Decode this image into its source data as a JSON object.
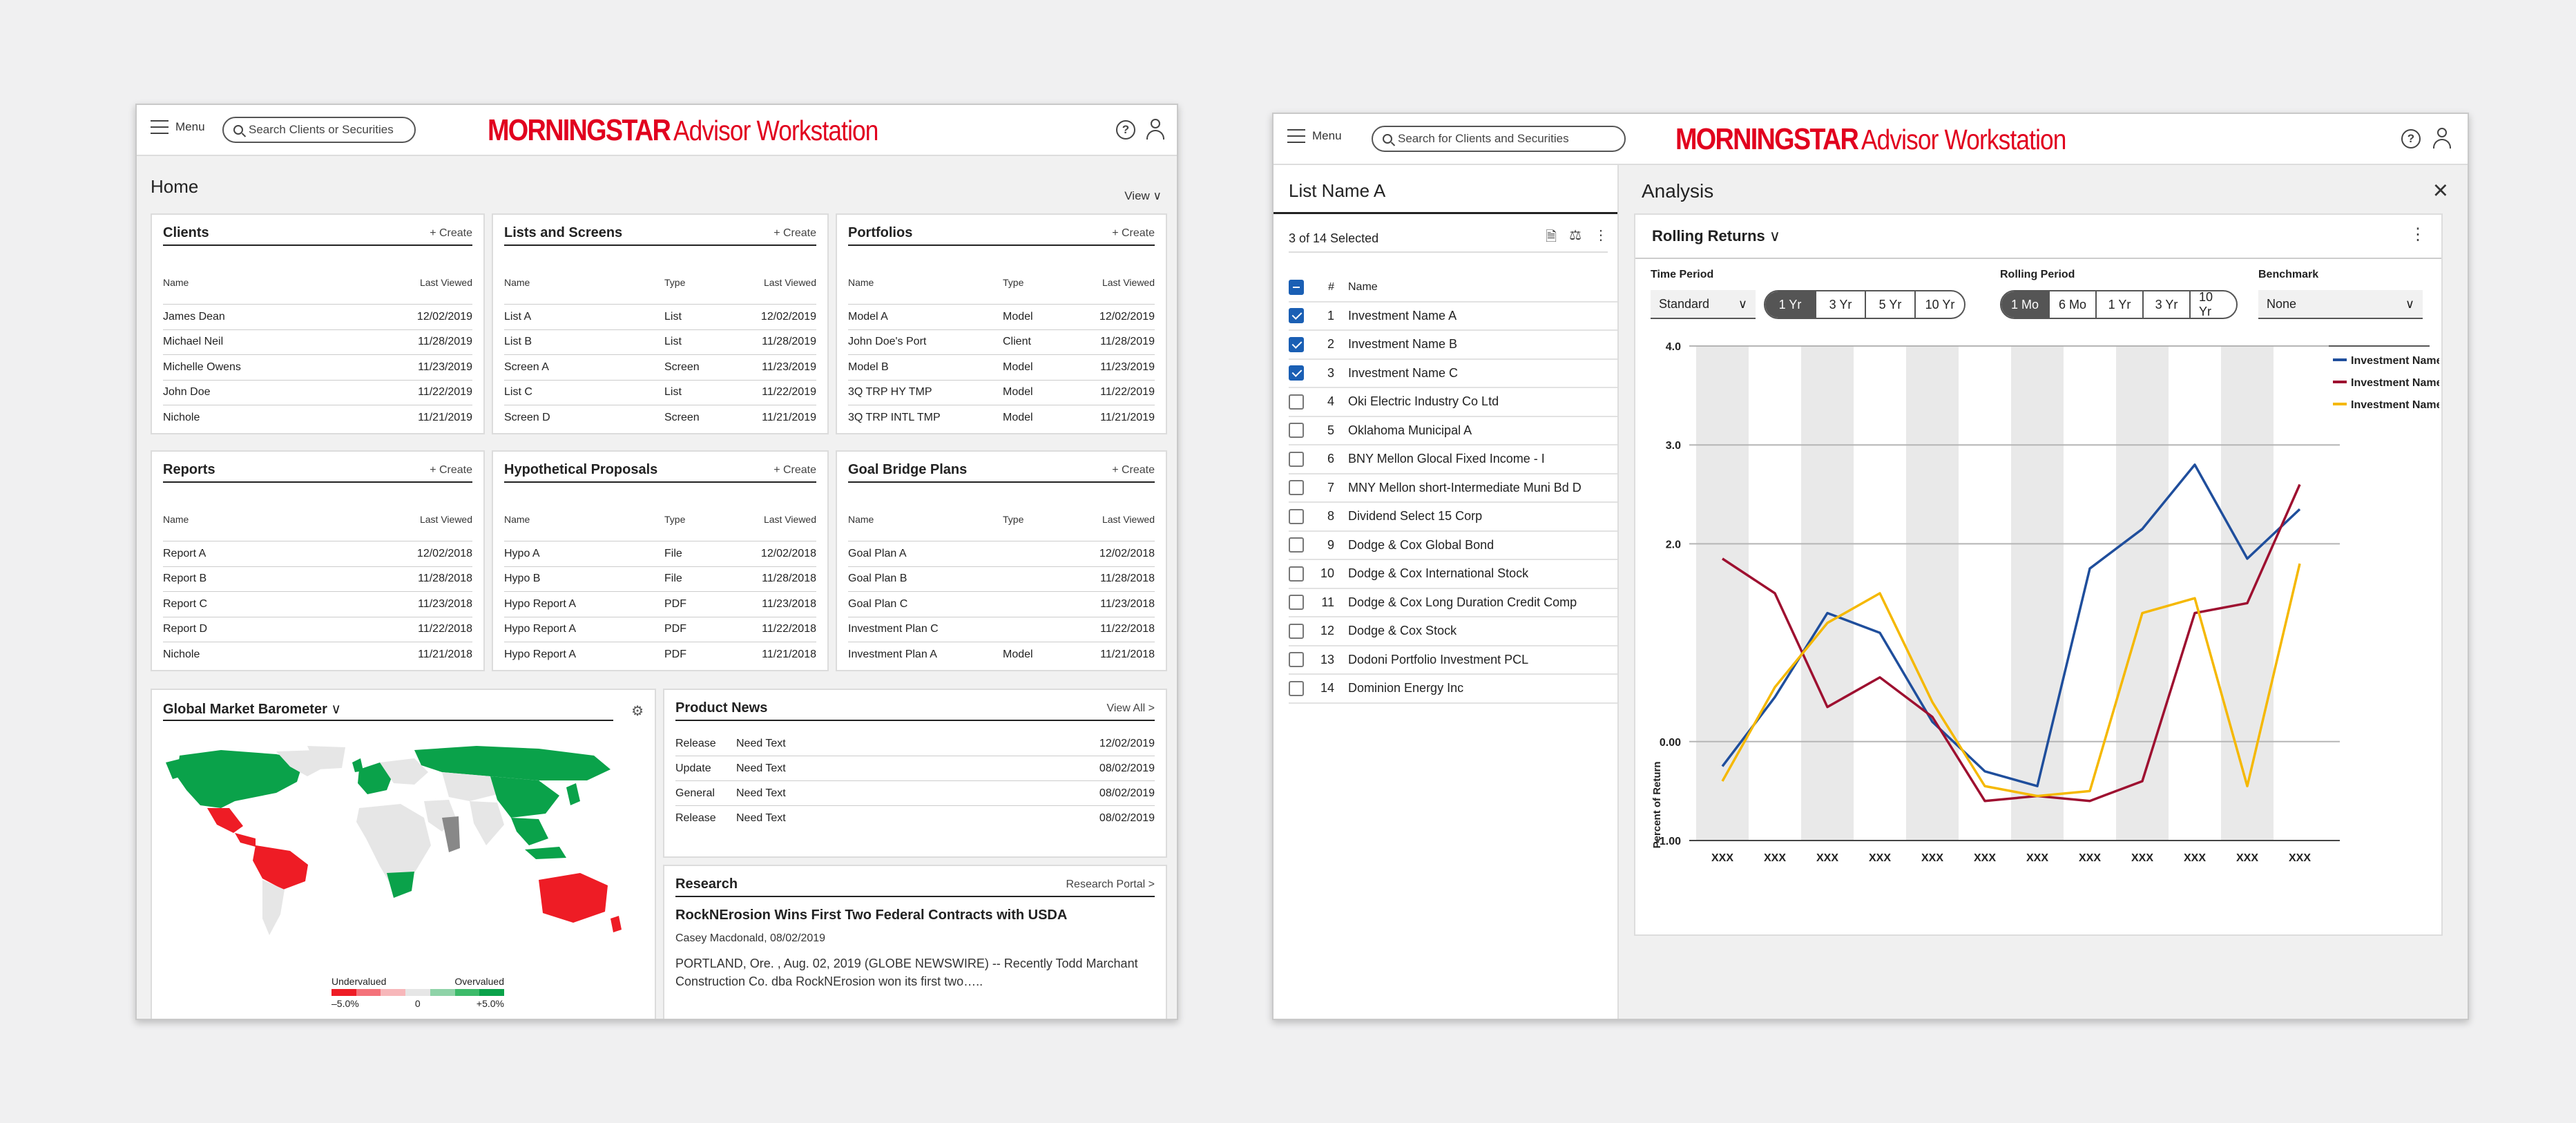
{
  "brand": {
    "logo_word": "MORNINGSTAR",
    "product": "Advisor Workstation"
  },
  "home": {
    "menu_label": "Menu",
    "search_placeholder": "Search Clients or Securities",
    "page_title": "Home",
    "view_label": "View",
    "clients": {
      "title": "Clients",
      "action": "+ Create",
      "headers": [
        "Name",
        "Last Viewed"
      ],
      "rows": [
        {
          "name": "James Dean",
          "date": "12/02/2019"
        },
        {
          "name": "Michael Neil",
          "date": "11/28/2019"
        },
        {
          "name": "Michelle Owens",
          "date": "11/23/2019"
        },
        {
          "name": "John Doe",
          "date": "11/22/2019"
        },
        {
          "name": "Nichole",
          "date": "11/21/2019"
        }
      ]
    },
    "lists": {
      "title": "Lists and Screens",
      "action": "+ Create",
      "headers": [
        "Name",
        "Type",
        "Last Viewed"
      ],
      "rows": [
        {
          "name": "List A",
          "type": "List",
          "date": "12/02/2019"
        },
        {
          "name": "List B",
          "type": "List",
          "date": "11/28/2019"
        },
        {
          "name": "Screen A",
          "type": "Screen",
          "date": "11/23/2019"
        },
        {
          "name": "List C",
          "type": "List",
          "date": "11/22/2019"
        },
        {
          "name": "Screen D",
          "type": "Screen",
          "date": "11/21/2019"
        }
      ]
    },
    "portfolios": {
      "title": "Portfolios",
      "action": "+ Create",
      "headers": [
        "Name",
        "Type",
        "Last Viewed"
      ],
      "rows": [
        {
          "name": "Model A",
          "type": "Model",
          "date": "12/02/2019"
        },
        {
          "name": "John Doe's Port",
          "type": "Client",
          "date": "11/28/2019"
        },
        {
          "name": "Model B",
          "type": "Model",
          "date": "11/23/2019"
        },
        {
          "name": "3Q TRP HY TMP",
          "type": "Model",
          "date": "11/22/2019"
        },
        {
          "name": "3Q TRP INTL TMP",
          "type": "Model",
          "date": "11/21/2019"
        }
      ]
    },
    "reports": {
      "title": "Reports",
      "action": "+ Create",
      "headers": [
        "Name",
        "Last Viewed"
      ],
      "rows": [
        {
          "name": "Report A",
          "date": "12/02/2018"
        },
        {
          "name": "Report B",
          "date": "11/28/2018"
        },
        {
          "name": "Report C",
          "date": "11/23/2018"
        },
        {
          "name": "Report D",
          "date": "11/22/2018"
        },
        {
          "name": "Nichole",
          "date": "11/21/2018"
        }
      ]
    },
    "proposals": {
      "title": "Hypothetical Proposals",
      "action": "+ Create",
      "headers": [
        "Name",
        "Type",
        "Last Viewed"
      ],
      "rows": [
        {
          "name": "Hypo A",
          "type": "File",
          "date": "12/02/2018"
        },
        {
          "name": "Hypo B",
          "type": "File",
          "date": "11/28/2018"
        },
        {
          "name": "Hypo Report A",
          "type": "PDF",
          "date": "11/23/2018"
        },
        {
          "name": "Hypo Report A",
          "type": "PDF",
          "date": "11/22/2018"
        },
        {
          "name": "Hypo Report A",
          "type": "PDF",
          "date": "11/21/2018"
        }
      ]
    },
    "goals": {
      "title": "Goal Bridge Plans",
      "action": "+ Create",
      "headers": [
        "Name",
        "Type",
        "Last Viewed"
      ],
      "rows": [
        {
          "name": "Goal Plan A",
          "type": "",
          "date": "12/02/2018"
        },
        {
          "name": "Goal Plan B",
          "type": "",
          "date": "11/28/2018"
        },
        {
          "name": "Goal Plan C",
          "type": "",
          "date": "11/23/2018"
        },
        {
          "name": "Investment Plan C",
          "type": "",
          "date": "11/22/2018"
        },
        {
          "name": "Investment Plan A",
          "type": "Model",
          "date": "11/21/2018"
        }
      ]
    },
    "barometer": {
      "title": "Global Market Barometer",
      "undervalued": "Undervalued",
      "overvalued": "Overvalued",
      "scale_ticks": [
        "–5.0%",
        "0",
        "+5.0%"
      ],
      "colors": {
        "over": "#0aa24a",
        "under": "#ee1c25",
        "neutral": "#e6e6e6"
      }
    },
    "news": {
      "title": "Product News",
      "action": "View All  >",
      "rows": [
        {
          "type": "Release",
          "text": "Need Text",
          "date": "12/02/2019"
        },
        {
          "type": "Update",
          "text": "Need Text",
          "date": "08/02/2019"
        },
        {
          "type": "General",
          "text": "Need Text",
          "date": "08/02/2019"
        },
        {
          "type": "Release",
          "text": "Need Text",
          "date": "08/02/2019"
        }
      ]
    },
    "research": {
      "title": "Research",
      "action": "Research Portal >",
      "headline": "RockNErosion Wins First Two Federal Contracts with USDA",
      "byline": "Casey Macdonald, 08/02/2019",
      "body": "PORTLAND, Ore. , Aug. 02, 2019 (GLOBE NEWSWIRE) -- Recently Todd Marchant Construction Co. dba RockNErosion won its first two….."
    }
  },
  "analysis": {
    "menu_label": "Menu",
    "search_placeholder": "Search for Clients and Securities",
    "list_title": "List Name A",
    "selected_text": "3 of 14 Selected",
    "col_num": "#",
    "col_name": "Name",
    "items": [
      {
        "num": "1",
        "name": "Investment Name A",
        "checked": true
      },
      {
        "num": "2",
        "name": "Investment Name B",
        "checked": true
      },
      {
        "num": "3",
        "name": "Investment Name C",
        "checked": true
      },
      {
        "num": "4",
        "name": "Oki Electric Industry Co Ltd",
        "checked": false
      },
      {
        "num": "5",
        "name": "Oklahoma Municipal A",
        "checked": false
      },
      {
        "num": "6",
        "name": "BNY Mellon Glocal Fixed Income - I",
        "checked": false
      },
      {
        "num": "7",
        "name": "MNY Mellon short-Intermediate Muni Bd D",
        "checked": false
      },
      {
        "num": "8",
        "name": "Dividend Select 15 Corp",
        "checked": false
      },
      {
        "num": "9",
        "name": "Dodge & Cox Global Bond",
        "checked": false
      },
      {
        "num": "10",
        "name": "Dodge & Cox International Stock",
        "checked": false
      },
      {
        "num": "11",
        "name": "Dodge & Cox Long Duration Credit Comp",
        "checked": false
      },
      {
        "num": "12",
        "name": "Dodge & Cox Stock",
        "checked": false
      },
      {
        "num": "13",
        "name": "Dodoni Portfolio Investment PCL",
        "checked": false
      },
      {
        "num": "14",
        "name": "Dominion Energy Inc",
        "checked": false
      }
    ],
    "title": "Analysis",
    "card_title": "Rolling Returns",
    "time_period_label": "Time Period",
    "time_period_value": "Standard",
    "time_options": [
      "1 Yr",
      "3 Yr",
      "5 Yr",
      "10 Yr"
    ],
    "time_selected": "1 Yr",
    "rolling_label": "Rolling Period",
    "rolling_options": [
      "1 Mo",
      "6 Mo",
      "1 Yr",
      "3 Yr",
      "10 Yr"
    ],
    "rolling_selected": "1 Mo",
    "benchmark_label": "Benchmark",
    "benchmark_value": "None"
  },
  "chart_data": {
    "type": "line",
    "ylabel": "Percent of Return",
    "ylim": [
      -1.0,
      4.0
    ],
    "y_ticks": [
      "4.0",
      "3.0",
      "2.0",
      "0.00",
      "-1.00"
    ],
    "y_tick_values": [
      4.0,
      3.0,
      2.0,
      0.0,
      -1.0
    ],
    "x": [
      "XXX",
      "XXX",
      "XXX",
      "XXX",
      "XXX",
      "XXX",
      "XXX",
      "XXX",
      "XXX",
      "XXX",
      "XXX",
      "XXX"
    ],
    "legend_position": "top-right",
    "series": [
      {
        "name": "Investment Name A",
        "color": "#1f4e9c",
        "points": [
          [
            0,
            -0.25
          ],
          [
            1,
            0.45
          ],
          [
            2,
            1.3
          ],
          [
            3,
            1.1
          ],
          [
            4,
            0.2
          ],
          [
            5,
            -0.3
          ],
          [
            6,
            -0.45
          ],
          [
            7,
            1.75
          ],
          [
            8,
            2.15
          ],
          [
            9,
            2.8
          ],
          [
            10,
            1.85
          ],
          [
            11,
            2.35
          ]
        ]
      },
      {
        "name": "Investment Name B",
        "color": "#9e1030",
        "points": [
          [
            0,
            1.85
          ],
          [
            1,
            1.5
          ],
          [
            2,
            0.35
          ],
          [
            3,
            0.65
          ],
          [
            4,
            0.25
          ],
          [
            5,
            -0.6
          ],
          [
            6,
            -0.55
          ],
          [
            7,
            -0.6
          ],
          [
            8,
            -0.4
          ],
          [
            9,
            1.3
          ],
          [
            10,
            1.4
          ],
          [
            11,
            2.6
          ]
        ]
      },
      {
        "name": "Investment Name C",
        "color": "#f5b800",
        "points": [
          [
            0,
            -0.4
          ],
          [
            1,
            0.55
          ],
          [
            2,
            1.2
          ],
          [
            3,
            1.5
          ],
          [
            4,
            0.4
          ],
          [
            5,
            -0.45
          ],
          [
            6,
            -0.55
          ],
          [
            7,
            -0.5
          ],
          [
            8,
            1.3
          ],
          [
            9,
            1.45
          ],
          [
            10,
            -0.45
          ],
          [
            11,
            1.8
          ]
        ]
      }
    ]
  }
}
